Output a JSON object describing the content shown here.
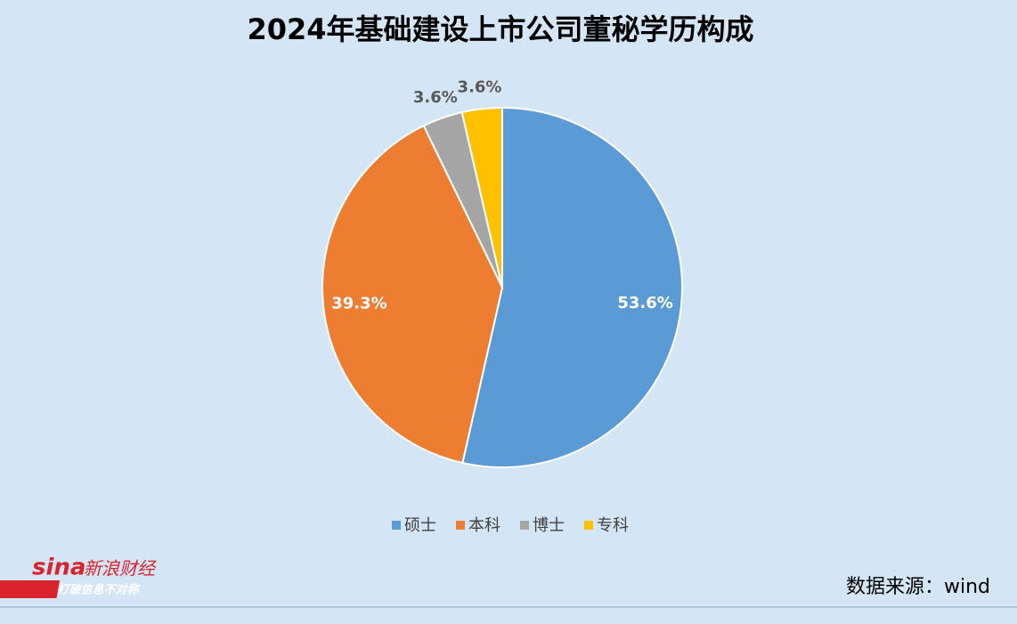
{
  "chart_data": {
    "type": "pie",
    "title": "2024年基础建设上市公司董秘学历构成",
    "categories": [
      "硕士",
      "本科",
      "博士",
      "专科"
    ],
    "values": [
      53.6,
      39.3,
      3.6,
      3.6
    ],
    "value_labels": [
      "53.6%",
      "39.3%",
      "3.6%",
      "3.6%"
    ],
    "colors": [
      "#5b9bd5",
      "#ed7d31",
      "#a5a5a5",
      "#ffc000"
    ],
    "legend": "bottom",
    "source": "数据来源：wind"
  },
  "logo": {
    "brand": "sina",
    "name": "新浪财经",
    "slogan": "打破信息不对称"
  }
}
